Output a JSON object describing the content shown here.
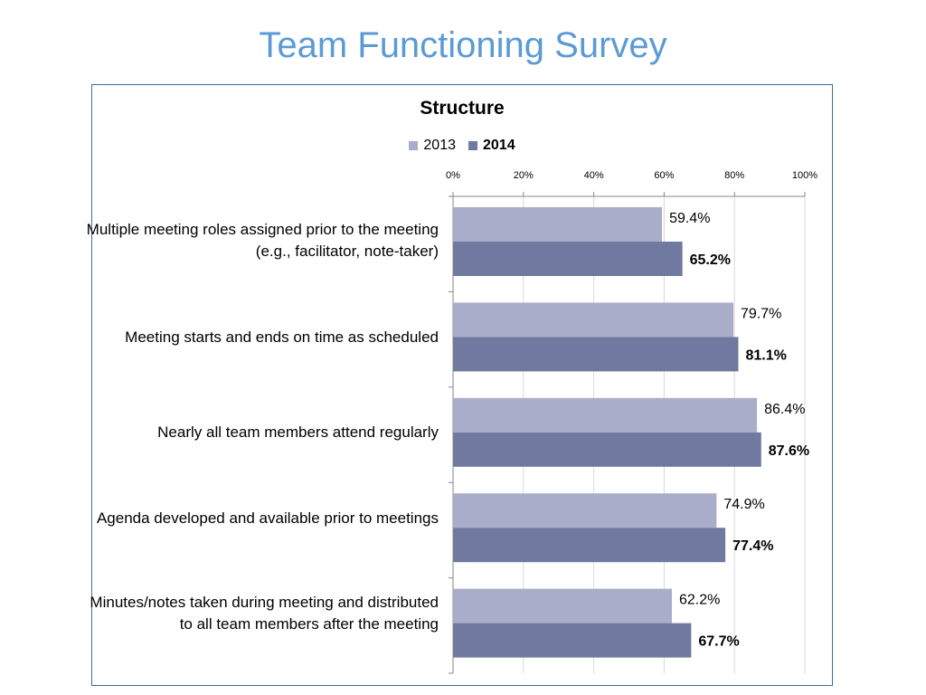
{
  "slide_title": "Team Functioning Survey",
  "chart_data": {
    "type": "bar",
    "orientation": "horizontal",
    "title": "Structure",
    "categories": [
      "Multiple meeting roles assigned prior to the meeting (e.g., facilitator, note-taker)",
      "Meeting starts and ends on time as scheduled",
      "Nearly all team members attend regularly",
      "Agenda developed and available prior to meetings",
      "Minutes/notes taken during meeting and distributed to all team members after the meeting"
    ],
    "series": [
      {
        "name": "2013",
        "color": "#a9adc9",
        "values": [
          59.4,
          79.7,
          86.4,
          74.9,
          62.2
        ],
        "labels": [
          "59.4%",
          "79.7%",
          "86.4%",
          "74.9%",
          "62.2%"
        ],
        "label_bold": false
      },
      {
        "name": "2014",
        "color": "#707aa0",
        "values": [
          65.2,
          81.1,
          87.6,
          77.4,
          67.7
        ],
        "labels": [
          "65.2%",
          "81.1%",
          "87.6%",
          "77.4%",
          "67.7%"
        ],
        "label_bold": true
      }
    ],
    "xlim": [
      0,
      100
    ],
    "xticks": [
      "0%",
      "20%",
      "40%",
      "60%",
      "80%",
      "100%"
    ],
    "x_axis_position": "top",
    "legend_position": "top",
    "grid": true
  }
}
